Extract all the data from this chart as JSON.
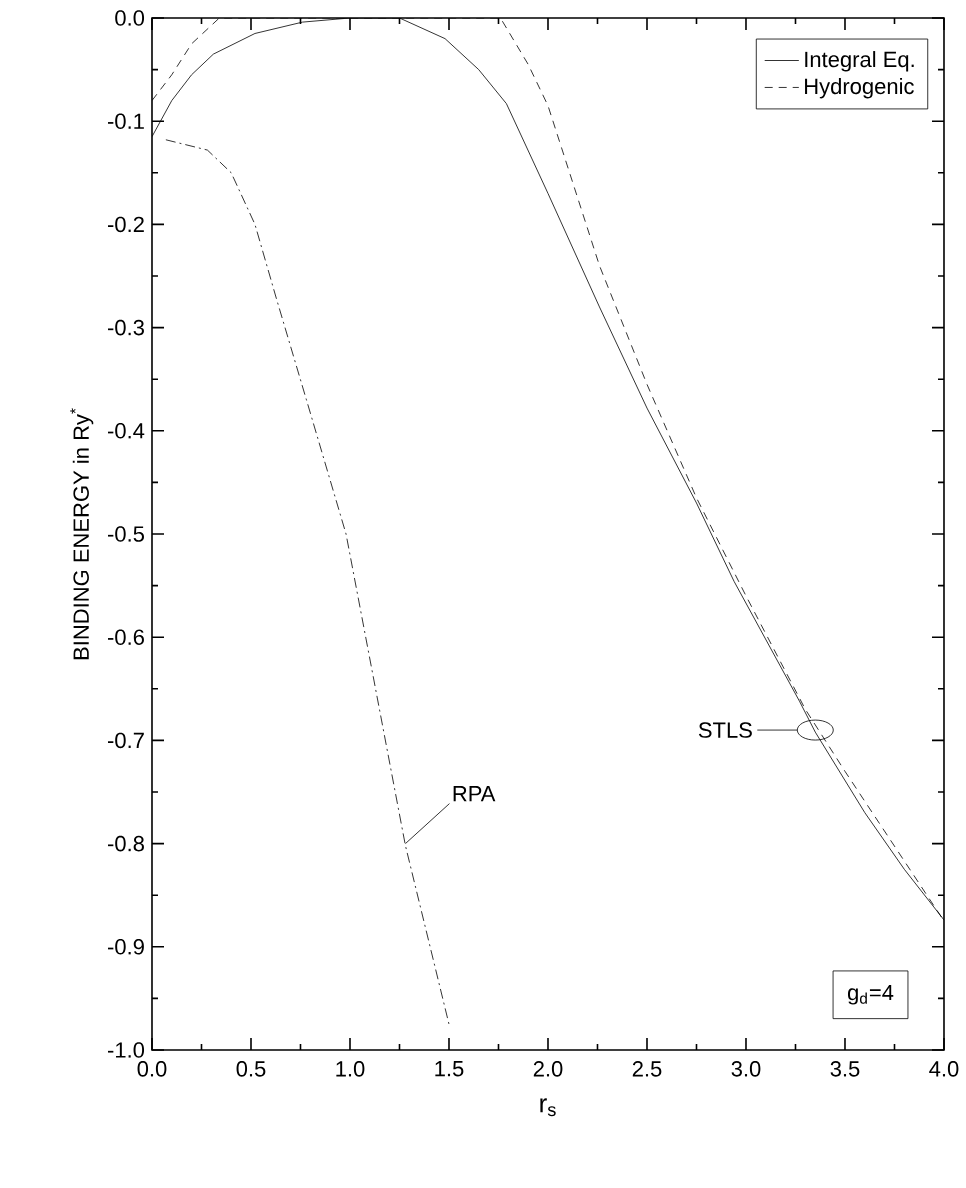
{
  "chart_data": {
    "type": "line",
    "xlabel": "r$_{s}$",
    "ylabel": "BINDING ENERGY  in Ry$^{*}$",
    "xlim": [
      0,
      4
    ],
    "ylim": [
      -1.0,
      0.0
    ],
    "xticks": [
      {
        "value": 0,
        "label": "0.0"
      },
      0.5,
      {
        "value": 1,
        "label": "1.0"
      },
      1.5,
      {
        "value": 2,
        "label": "2.0"
      },
      2.5,
      {
        "value": 3,
        "label": "3.0"
      },
      3.5,
      {
        "value": 4,
        "label": "4.0"
      }
    ],
    "yticks": [
      {
        "value": -1,
        "label": "-1.0"
      },
      -0.9,
      -0.8,
      -0.7,
      -0.6,
      -0.5,
      -0.4,
      -0.3,
      -0.2,
      -0.1,
      {
        "value": 0,
        "label": "0.0"
      }
    ],
    "legend": "top right",
    "grid": false,
    "marker": "none",
    "series": [
      {
        "name": "Integral Eq.",
        "color": "#000000",
        "line_style": "solid",
        "x": [
          0,
          0.1,
          0.2,
          0.31,
          0.52,
          0.76,
          1.0,
          1.25,
          1.48,
          1.65,
          1.79,
          2.0,
          2.26,
          2.5,
          2.75,
          2.94,
          3.27,
          3.35,
          3.6,
          3.8,
          4.0
        ],
        "values": [
          -0.115,
          -0.08,
          -0.055,
          -0.035,
          -0.015,
          -0.004,
          0,
          0,
          -0.02,
          -0.05,
          -0.083,
          -0.17,
          -0.28,
          -0.378,
          -0.47,
          -0.546,
          -0.662,
          -0.692,
          -0.77,
          -0.825,
          -0.874
        ]
      },
      {
        "name": "Hydrogenic",
        "color": "#000000",
        "line_style": "dashed",
        "x": [
          0,
          0.1,
          0.2,
          0.34,
          1.0,
          1.76,
          1.9,
          2.0,
          2.26,
          2.5,
          2.75,
          3.0,
          3.3,
          3.5,
          4.0
        ],
        "values": [
          -0.08,
          -0.055,
          -0.025,
          0,
          0,
          0,
          -0.045,
          -0.085,
          -0.24,
          -0.355,
          -0.465,
          -0.56,
          -0.67,
          -0.73,
          -0.875
        ]
      },
      {
        "color": "#000000",
        "line_style": "dashdot",
        "x": [
          0.07,
          0.28,
          0.4,
          0.52,
          0.63,
          0.78,
          0.98,
          1.28,
          1.5
        ],
        "values": [
          -0.118,
          -0.128,
          -0.15,
          -0.2,
          -0.273,
          -0.37,
          -0.5,
          -0.802,
          -0.975
        ]
      }
    ],
    "annotations": [
      {
        "text": "RPA",
        "x": 1.28,
        "y": -0.8
      },
      {
        "text": "STLS",
        "x": 3.35,
        "y": -0.69
      },
      "g$_{d}$=4"
    ]
  }
}
